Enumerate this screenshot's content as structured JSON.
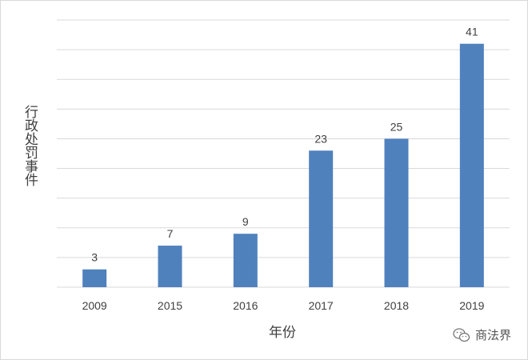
{
  "chart_data": {
    "type": "bar",
    "title": "",
    "xlabel": "年份",
    "ylabel": "行政处罚事件",
    "categories": [
      "2009",
      "2015",
      "2016",
      "2017",
      "2018",
      "2019"
    ],
    "values": [
      3,
      7,
      9,
      23,
      25,
      41
    ],
    "ylim": [
      0,
      45
    ],
    "y_gridlines": [
      0,
      5,
      10,
      15,
      20,
      25,
      30,
      35,
      40,
      45
    ],
    "y_tick_labels_visible": false,
    "data_labels": true,
    "grid": true,
    "legend": "none",
    "bar_color": "#4f81bd",
    "grid_color": "#d9d9d9"
  },
  "watermark": {
    "text": "商法界",
    "icon": "wechat-icon"
  }
}
